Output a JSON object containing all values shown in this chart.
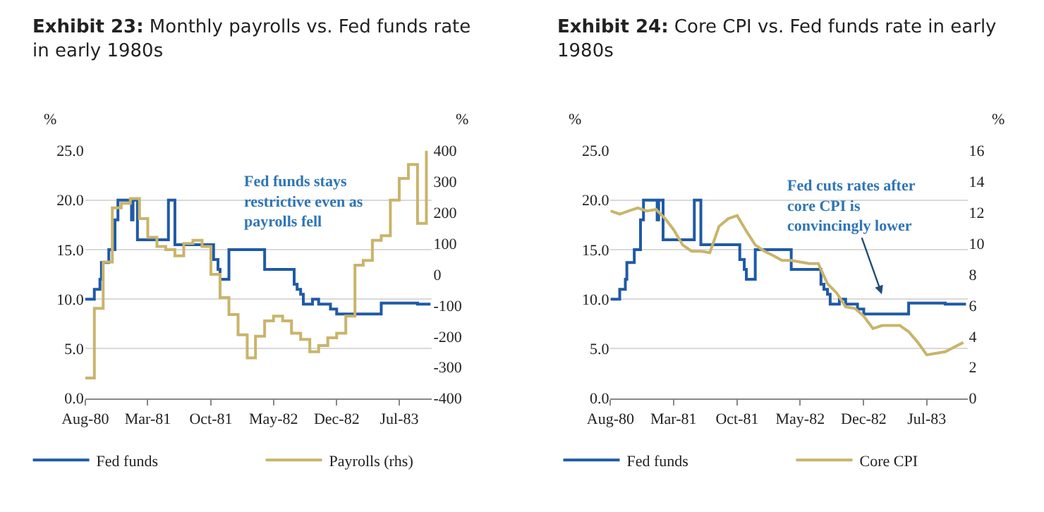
{
  "chart_data": [
    {
      "type": "step",
      "title": "Exhibit 23: Monthly payrolls vs. Fed funds rate in early 1980s",
      "ylabel": "%",
      "y2label": "%",
      "xlim": [
        "1980-08",
        "1983-10-20"
      ],
      "xticks": [
        {
          "value": "1980-08",
          "label": "Aug-80"
        },
        {
          "value": "1981-03",
          "label": "Mar-81"
        },
        {
          "value": "1981-10",
          "label": "Oct-81"
        },
        {
          "value": "1982-05",
          "label": "May-82"
        },
        {
          "value": "1982-12",
          "label": "Dec-82"
        },
        {
          "value": "1983-07",
          "label": "Jul-83"
        }
      ],
      "ylim": [
        0,
        25
      ],
      "yticks": [
        {
          "value": 0,
          "label": "0.0"
        },
        {
          "value": 5,
          "label": "5.0"
        },
        {
          "value": 10,
          "label": "10.0"
        },
        {
          "value": 15,
          "label": "15.0"
        },
        {
          "value": 20,
          "label": "20.0"
        },
        {
          "value": 25,
          "label": "25.0"
        }
      ],
      "y2lim": [
        -400,
        400
      ],
      "y2ticks": [
        -400,
        -300,
        -200,
        -100,
        0,
        100,
        200,
        300,
        400
      ],
      "grid": "y",
      "legend": "bottom",
      "marker": "none",
      "line_style": "solid",
      "annotations": [
        "Fed funds stays restrictive even as payrolls fell"
      ],
      "series": [
        {
          "name": "Fed funds",
          "color": "#1f5aa6",
          "x": [
            "1980-08-01",
            "1980-09-01",
            "1980-09-20",
            "1980-09-25",
            "1980-10-20",
            "1980-11-10",
            "1980-11-20",
            "1981-01-05",
            "1981-01-10",
            "1981-01-25",
            "1981-05-10",
            "1981-06-01",
            "1981-10-10",
            "1981-10-25",
            "1981-11-01",
            "1981-12-01",
            "1982-04-01",
            "1982-07-10",
            "1982-07-20",
            "1982-08-01",
            "1982-08-10",
            "1982-09-10",
            "1982-10-01",
            "1982-11-10",
            "1982-12-01",
            "1983-05-01",
            "1983-09-01",
            "1983-10-15"
          ],
          "values": [
            10,
            11,
            12,
            13.7,
            15,
            18,
            20,
            18,
            20,
            16,
            20,
            15.5,
            14,
            13,
            12,
            15,
            13,
            11.5,
            11,
            10.5,
            9.5,
            10,
            9.5,
            9,
            8.5,
            9.6,
            9.5,
            9.5
          ]
        },
        {
          "name": "Payrolls (rhs)",
          "axis": "y2",
          "color": "#c9b46c",
          "x": [
            "1980-08",
            "1980-09",
            "1980-10",
            "1980-11",
            "1980-12",
            "1981-01",
            "1981-02",
            "1981-03",
            "1981-04",
            "1981-05",
            "1981-06",
            "1981-07",
            "1981-08",
            "1981-09",
            "1981-10",
            "1981-11",
            "1981-12",
            "1982-01",
            "1982-02",
            "1982-03",
            "1982-04",
            "1982-05",
            "1982-06",
            "1982-07",
            "1982-08",
            "1982-09",
            "1982-10",
            "1982-11",
            "1982-12",
            "1983-01",
            "1983-02",
            "1983-03",
            "1983-04",
            "1983-05",
            "1983-06",
            "1983-07",
            "1983-08",
            "1983-09",
            "1983-10"
          ],
          "values": [
            -335,
            -110,
            40,
            215,
            230,
            245,
            180,
            120,
            90,
            80,
            60,
            100,
            110,
            90,
            0,
            -75,
            -130,
            -195,
            -270,
            -200,
            -150,
            -135,
            -150,
            -190,
            -210,
            -250,
            -230,
            -205,
            -190,
            -135,
            30,
            45,
            110,
            125,
            240,
            310,
            355,
            165,
            400
          ]
        }
      ]
    },
    {
      "type": "line",
      "title": "Exhibit 24: Core CPI vs. Fed funds rate in early 1980s",
      "ylabel": "%",
      "y2label": "%",
      "xlim": [
        "1980-08",
        "1983-11-15"
      ],
      "xticks": [
        {
          "value": "1980-08",
          "label": "Aug-80"
        },
        {
          "value": "1981-03",
          "label": "Mar-81"
        },
        {
          "value": "1981-10",
          "label": "Oct-81"
        },
        {
          "value": "1982-05",
          "label": "May-82"
        },
        {
          "value": "1982-12",
          "label": "Dec-82"
        },
        {
          "value": "1983-07",
          "label": "Jul-83"
        }
      ],
      "ylim": [
        0,
        25
      ],
      "yticks": [
        {
          "value": 0,
          "label": "0.0"
        },
        {
          "value": 5,
          "label": "5.0"
        },
        {
          "value": 10,
          "label": "10.0"
        },
        {
          "value": 15,
          "label": "15.0"
        },
        {
          "value": 20,
          "label": "20.0"
        },
        {
          "value": 25,
          "label": "25.0"
        }
      ],
      "y2lim": [
        0,
        16
      ],
      "y2ticks": [
        0,
        2,
        4,
        6,
        8,
        10,
        12,
        14,
        16
      ],
      "grid": "y",
      "legend": "bottom",
      "marker": "none",
      "line_style": "solid",
      "annotations": [
        "Fed cuts rates after core CPI is convincingly lower"
      ],
      "series": [
        {
          "name": "Fed funds",
          "type": "step",
          "color": "#1f5aa6",
          "x": [
            "1980-08-01",
            "1980-09-01",
            "1980-09-20",
            "1980-09-25",
            "1980-10-20",
            "1980-11-10",
            "1980-11-20",
            "1981-01-05",
            "1981-01-10",
            "1981-01-25",
            "1981-05-10",
            "1981-06-01",
            "1981-10-10",
            "1981-10-25",
            "1981-11-01",
            "1981-12-01",
            "1982-04-01",
            "1982-07-10",
            "1982-07-20",
            "1982-08-01",
            "1982-08-10",
            "1982-09-10",
            "1982-10-01",
            "1982-11-10",
            "1982-12-01",
            "1983-05-01",
            "1983-09-01",
            "1983-11-10"
          ],
          "values": [
            10,
            11,
            12,
            13.7,
            15,
            18,
            20,
            18,
            20,
            16,
            20,
            15.5,
            14,
            13,
            12,
            15,
            13,
            11.5,
            11,
            10.5,
            9.5,
            10,
            9.5,
            9,
            8.5,
            9.6,
            9.5,
            9.5
          ]
        },
        {
          "name": "Core CPI",
          "axis": "y2",
          "color": "#c9b46c",
          "x": [
            "1980-08",
            "1980-09",
            "1980-10",
            "1980-11",
            "1980-12",
            "1981-01",
            "1981-02",
            "1981-03",
            "1981-04",
            "1981-05",
            "1981-06",
            "1981-07",
            "1981-08",
            "1981-09",
            "1981-10",
            "1981-11",
            "1981-12",
            "1982-01",
            "1982-02",
            "1982-03",
            "1982-04",
            "1982-05",
            "1982-06",
            "1982-07",
            "1982-08",
            "1982-09",
            "1982-10",
            "1982-11",
            "1982-12",
            "1983-01",
            "1983-02",
            "1983-03",
            "1983-04",
            "1983-05",
            "1983-06",
            "1983-07",
            "1983-08",
            "1983-09",
            "1983-10",
            "1983-11"
          ],
          "values": [
            12.1,
            11.9,
            12.1,
            12.3,
            12.1,
            12.2,
            11.6,
            10.9,
            9.9,
            9.5,
            9.5,
            9.4,
            11.1,
            11.6,
            11.8,
            10.8,
            9.9,
            9.5,
            9.2,
            8.9,
            8.9,
            8.8,
            8.7,
            8.7,
            7.4,
            6.8,
            5.9,
            5.8,
            5.3,
            4.5,
            4.7,
            4.7,
            4.7,
            4.3,
            3.6,
            2.8,
            2.9,
            3.0,
            3.3,
            3.6
          ]
        }
      ]
    }
  ]
}
